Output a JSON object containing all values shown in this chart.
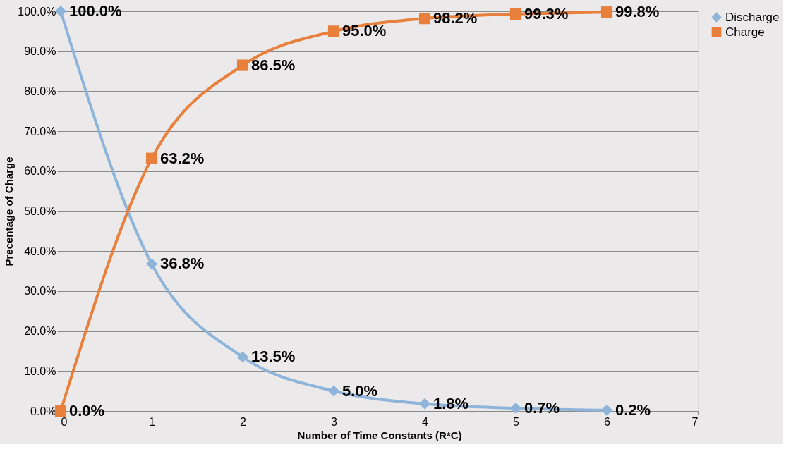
{
  "chart_data": {
    "type": "line",
    "xlabel": "Number of Time Constants (R*C)",
    "ylabel": "Precentage of Charge",
    "x": [
      0,
      1,
      2,
      3,
      4,
      5,
      6
    ],
    "series": [
      {
        "name": "Discharge",
        "color": "#8fb4da",
        "marker": "diamond",
        "values": [
          100,
          36.8,
          13.5,
          5.0,
          1.8,
          0.7,
          0.2
        ],
        "value_labels": [
          "100.0%",
          "36.8%",
          "13.5%",
          "5.0%",
          "1.8%",
          "0.7%",
          "0.2%"
        ]
      },
      {
        "name": "Charge",
        "color": "#e8803c",
        "marker": "square",
        "values": [
          0,
          63.2,
          86.5,
          95.0,
          98.2,
          99.3,
          99.8
        ],
        "value_labels": [
          "0.0%",
          "63.2%",
          "86.5%",
          "95.0%",
          "98.2%",
          "99.3%",
          "99.8%"
        ]
      }
    ],
    "xlim": [
      0,
      7
    ],
    "xticks": [
      0,
      1,
      2,
      3,
      4,
      5,
      6,
      7
    ],
    "ylim": [
      0,
      100
    ],
    "yticks": [
      {
        "value": 0,
        "label": "0.0%"
      },
      {
        "value": 10,
        "label": "10.0%"
      },
      {
        "value": 20,
        "label": "20.0%"
      },
      {
        "value": 30,
        "label": "30.0%"
      },
      {
        "value": 40,
        "label": "40.0%"
      },
      {
        "value": 50,
        "label": "50.0%"
      },
      {
        "value": 60,
        "label": "60.0%"
      },
      {
        "value": 70,
        "label": "70.0%"
      },
      {
        "value": 80,
        "label": "80.0%"
      },
      {
        "value": 90,
        "label": "90.0%"
      },
      {
        "value": 100,
        "label": "100.0%"
      }
    ],
    "grid": "y",
    "legend": "right",
    "line_style": "solid"
  }
}
